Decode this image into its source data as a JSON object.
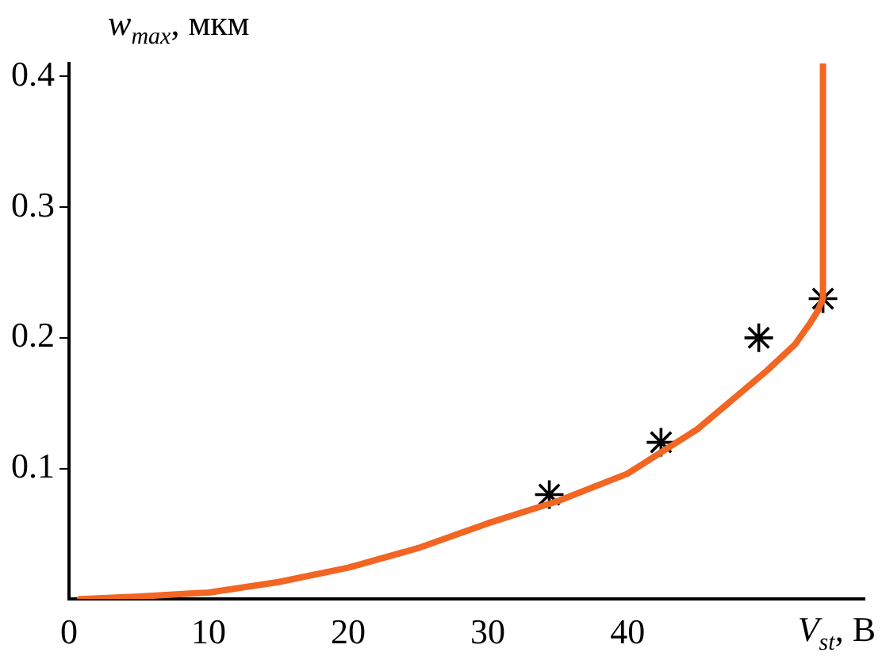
{
  "chart_data": {
    "type": "line",
    "xlabel": "V$_{st}$, В",
    "ylabel": "w$_{max}$, мкм",
    "xlim": [
      0,
      57
    ],
    "ylim": [
      0,
      0.41
    ],
    "xticks": [
      0,
      10,
      20,
      30,
      40
    ],
    "yticks": [
      0.1,
      0.2,
      0.3,
      0.4
    ],
    "grid": false,
    "legend": false,
    "series": [
      {
        "color": "#f26522",
        "marker": "none",
        "x": [
          0.8,
          5,
          10,
          15,
          20,
          25,
          30,
          35,
          40,
          45,
          50,
          52,
          53,
          53.6,
          54,
          54,
          54
        ],
        "values": [
          0,
          0.002,
          0.005,
          0.013,
          0.024,
          0.039,
          0.058,
          0.075,
          0.096,
          0.13,
          0.175,
          0.195,
          0.21,
          0.22,
          0.23,
          0.3,
          0.41
        ]
      },
      {
        "type": "scatter",
        "color": "#000000",
        "marker": "cross",
        "x": [
          34.4,
          42.4,
          49.4,
          54
        ],
        "values": [
          0.08,
          0.12,
          0.2,
          0.23
        ]
      }
    ]
  }
}
